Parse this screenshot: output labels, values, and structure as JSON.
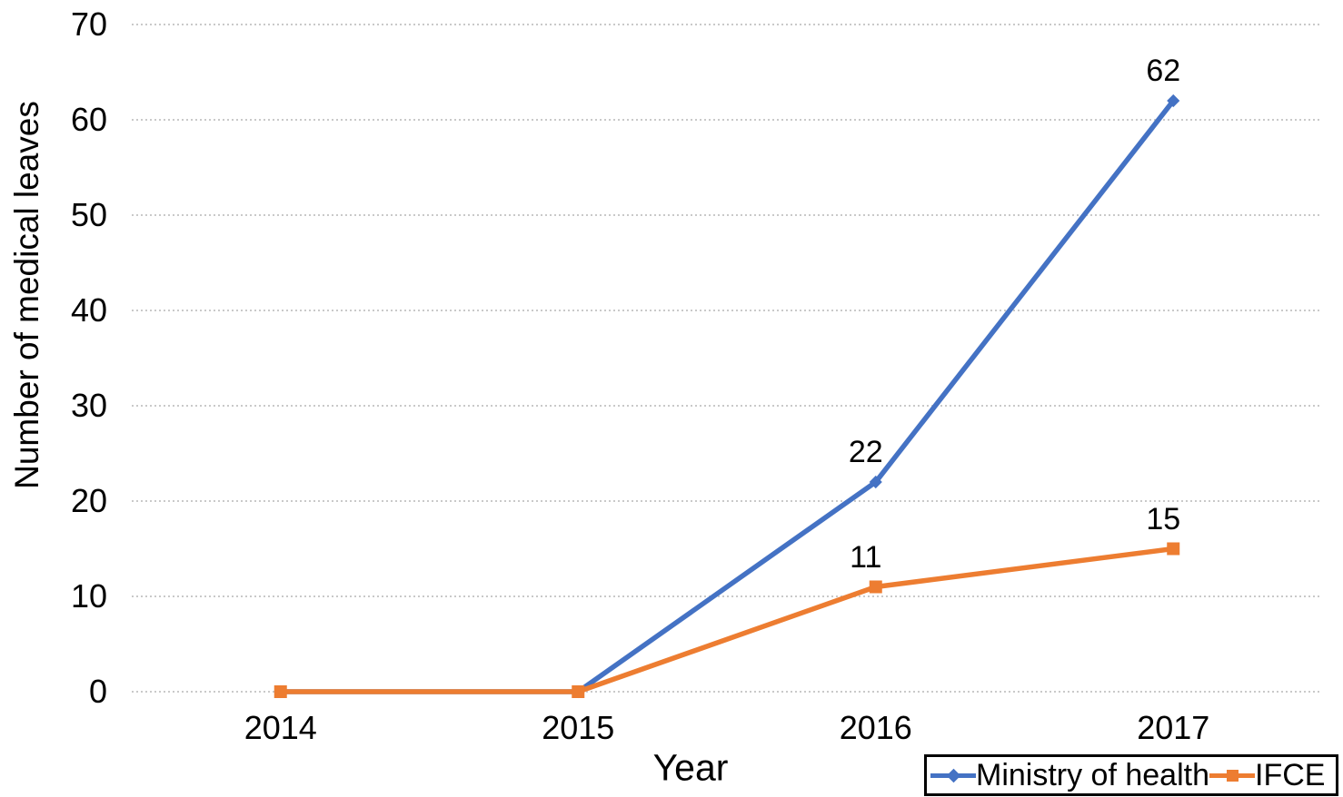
{
  "chart_data": {
    "type": "line",
    "title": "",
    "xlabel": "Year",
    "ylabel": "Number of medical leaves",
    "categories": [
      "2014",
      "2015",
      "2016",
      "2017"
    ],
    "series": [
      {
        "name": "Ministry of health",
        "color": "#4472C4",
        "marker": "diamond",
        "values": [
          0,
          0,
          22,
          62
        ],
        "point_labels": [
          "",
          "",
          "22",
          "62"
        ]
      },
      {
        "name": "IFCE",
        "color": "#ED7D31",
        "marker": "square",
        "values": [
          0,
          0,
          11,
          15
        ],
        "point_labels": [
          "",
          "",
          "11",
          "15"
        ]
      }
    ],
    "ylim": [
      0,
      70
    ],
    "ytick_step": 10,
    "yticks": [
      "0",
      "10",
      "20",
      "30",
      "40",
      "50",
      "60",
      "70"
    ],
    "grid": "horizontal-dotted",
    "gridline_color": "#c9c9c9",
    "legend_position": "bottom-right",
    "text_color": "#000000",
    "background_color": "#ffffff"
  }
}
